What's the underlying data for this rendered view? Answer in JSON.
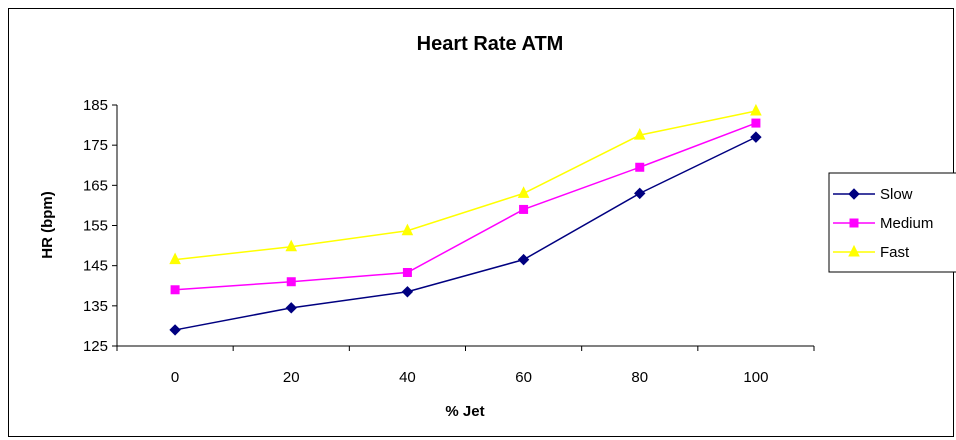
{
  "chart_data": {
    "type": "line",
    "title": "Heart Rate ATM",
    "xlabel": "% Jet",
    "ylabel": "HR (bpm)",
    "x": [
      0,
      20,
      40,
      60,
      80,
      100
    ],
    "x_tick_labels": [
      "0",
      "20",
      "40",
      "60",
      "80",
      "100"
    ],
    "ylim": [
      125,
      185
    ],
    "y_ticks": [
      125,
      135,
      145,
      155,
      165,
      175,
      185
    ],
    "y_tick_labels": [
      "125",
      "135",
      "145",
      "155",
      "165",
      "175",
      "185"
    ],
    "grid": false,
    "legend_position": "right",
    "series": [
      {
        "name": "Slow",
        "color": "#000080",
        "marker": "diamond",
        "values": [
          129,
          134.5,
          138.5,
          146.5,
          163,
          177
        ]
      },
      {
        "name": "Medium",
        "color": "#ff00ff",
        "marker": "square",
        "values": [
          139,
          141,
          143.3,
          159,
          169.5,
          180.5
        ]
      },
      {
        "name": "Fast",
        "color": "#ffff00",
        "marker": "triangle",
        "values": [
          146.5,
          149.7,
          153.7,
          163,
          177.5,
          183.5
        ]
      }
    ]
  }
}
